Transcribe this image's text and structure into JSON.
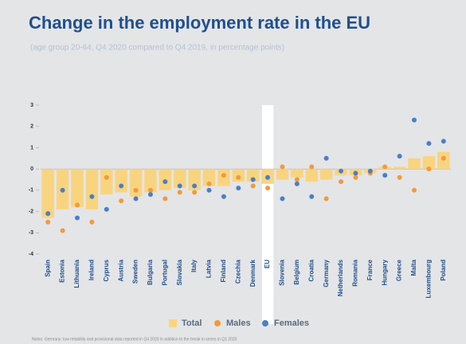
{
  "chart_data": {
    "type": "bar",
    "title": "Change in the employment rate in the EU",
    "subtitle": "(age group 20-64, Q4 2020 compared to Q4 2019, in percentage points)",
    "note": "Notes: Germany: low reliability and provisional data reported in Q4 2020 in addition to the break in series in Q1 2020",
    "categories": [
      "Spain",
      "Estonia",
      "Lithuania",
      "Ireland",
      "Cyprus",
      "Austria",
      "Sweden",
      "Bulgaria",
      "Portugal",
      "Slovakia",
      "Italy",
      "Latvia",
      "Finland",
      "Czechia",
      "Denmark",
      "EU",
      "Slovenia",
      "Belgium",
      "Croatia",
      "Germany",
      "Netherlands",
      "Romania",
      "France",
      "Hungary",
      "Greece",
      "Malta",
      "Luxembourg",
      "Poland"
    ],
    "highlight": "EU",
    "series": [
      {
        "name": "Total",
        "color": "#f9d47f",
        "values": [
          -2.3,
          -1.9,
          -1.8,
          -1.9,
          -1.2,
          -1.1,
          -1.3,
          -1.1,
          -1.0,
          -0.9,
          -1.0,
          -0.8,
          -0.8,
          -0.6,
          -0.6,
          -0.7,
          -0.5,
          -0.4,
          -0.6,
          -0.5,
          -0.3,
          -0.3,
          -0.2,
          0.1,
          0.1,
          0.5,
          0.6,
          0.8
        ]
      },
      {
        "name": "Males",
        "color": "#f29a3a",
        "values": [
          -2.5,
          -2.9,
          -1.7,
          -2.5,
          -0.4,
          -1.5,
          -1.0,
          -1.0,
          -1.4,
          -1.1,
          -1.1,
          -0.7,
          -0.3,
          -0.4,
          -0.8,
          -0.9,
          0.1,
          -0.5,
          0.1,
          -1.4,
          -0.6,
          -0.4,
          -0.2,
          0.1,
          -0.4,
          -1.0,
          0.0,
          0.5
        ]
      },
      {
        "name": "Females",
        "color": "#4a7fc6",
        "values": [
          -2.1,
          -1.0,
          -2.3,
          -1.3,
          -1.9,
          -0.8,
          -1.4,
          -1.2,
          -0.6,
          -0.8,
          -0.8,
          -1.0,
          -1.3,
          -0.9,
          -0.5,
          -0.4,
          -1.4,
          -0.7,
          -1.3,
          0.5,
          -0.1,
          -0.2,
          -0.1,
          -0.3,
          0.6,
          2.3,
          1.2,
          1.3
        ]
      }
    ],
    "ylim": [
      -4,
      3
    ],
    "yticks": [
      3,
      2,
      1,
      0,
      -1,
      -2,
      -3,
      -4
    ]
  }
}
